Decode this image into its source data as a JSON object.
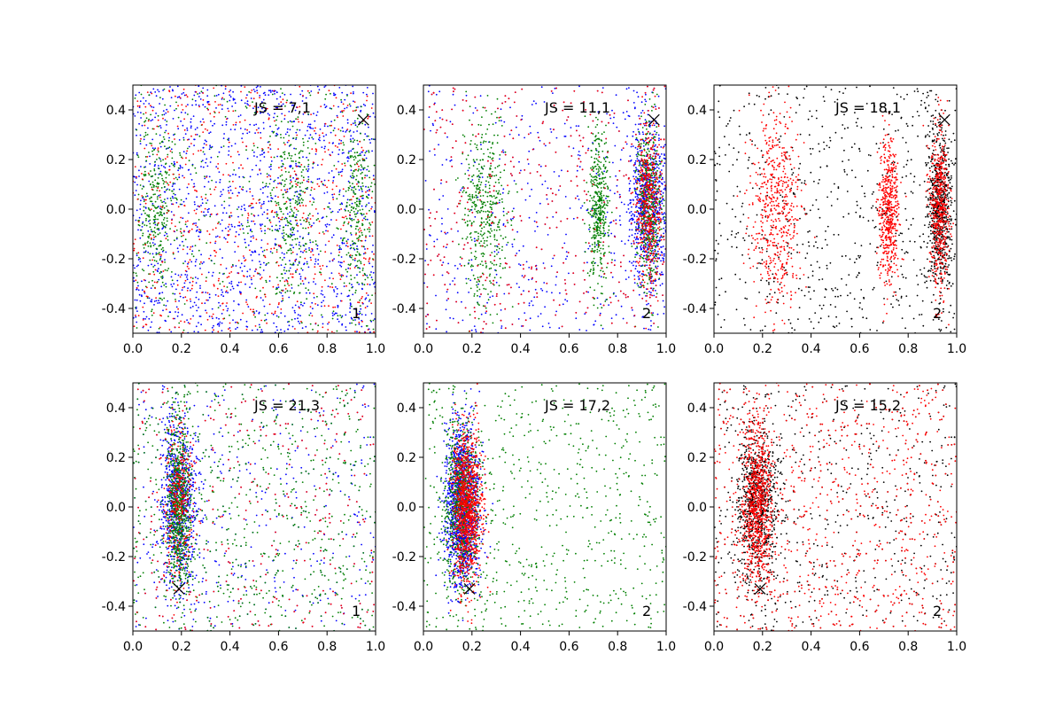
{
  "colors": {
    "blue": "#0000ff",
    "green": "#007f00",
    "red": "#ff0000",
    "black": "#000000"
  },
  "chart_data": [
    {
      "type": "scatter",
      "annotation": "JS = 7,1",
      "corner_label": "1",
      "xlim": [
        0.0,
        1.0
      ],
      "ylim": [
        -0.5,
        0.5
      ],
      "xticks": [
        "0.0",
        "0.2",
        "0.4",
        "0.6",
        "0.8",
        "1.0"
      ],
      "yticks": [
        "-0.4",
        "-0.2",
        "0.0",
        "0.2",
        "0.4"
      ],
      "marker": {
        "x": 0.95,
        "y": 0.36
      },
      "series": [
        {
          "color": "#0000ff",
          "count": 1400,
          "clusters": [
            {
              "x": 0.5,
              "y": 0.0,
              "sx": 0.3,
              "sy": 0.26,
              "uniform": true
            }
          ]
        },
        {
          "color": "#007f00",
          "count": 1100,
          "clusters": [
            {
              "x": 0.1,
              "y": 0.0,
              "sx": 0.04,
              "sy": 0.18
            },
            {
              "x": 0.65,
              "y": 0.0,
              "sx": 0.05,
              "sy": 0.2
            },
            {
              "x": 0.92,
              "y": 0.0,
              "sx": 0.03,
              "sy": 0.2
            },
            {
              "x": 0.4,
              "y": 0.0,
              "sx": 0.3,
              "sy": 0.25,
              "uniform": true
            }
          ]
        },
        {
          "color": "#ff0000",
          "count": 700,
          "clusters": [
            {
              "x": 0.5,
              "y": 0.0,
              "sx": 0.3,
              "sy": 0.26,
              "uniform": true
            }
          ]
        }
      ]
    },
    {
      "type": "scatter",
      "annotation": "JS = 11,1",
      "corner_label": "2",
      "xlim": [
        0.0,
        1.0
      ],
      "ylim": [
        -0.5,
        0.5
      ],
      "xticks": [
        "0.0",
        "0.2",
        "0.4",
        "0.6",
        "0.8",
        "1.0"
      ],
      "yticks": [
        "-0.4",
        "-0.2",
        "0.0",
        "0.2",
        "0.4"
      ],
      "marker": {
        "x": 0.95,
        "y": 0.36
      },
      "series": [
        {
          "color": "#0000ff",
          "count": 1700,
          "clusters": [
            {
              "x": 0.93,
              "y": 0.0,
              "sx": 0.04,
              "sy": 0.16
            },
            {
              "x": 0.5,
              "y": 0.0,
              "sx": 0.3,
              "sy": 0.26,
              "uniform": true
            }
          ]
        },
        {
          "color": "#007f00",
          "count": 1300,
          "clusters": [
            {
              "x": 0.93,
              "y": 0.0,
              "sx": 0.025,
              "sy": 0.17
            },
            {
              "x": 0.72,
              "y": 0.0,
              "sx": 0.02,
              "sy": 0.15
            },
            {
              "x": 0.25,
              "y": 0.0,
              "sx": 0.05,
              "sy": 0.2
            }
          ]
        },
        {
          "color": "#ff0000",
          "count": 900,
          "clusters": [
            {
              "x": 0.93,
              "y": 0.0,
              "sx": 0.025,
              "sy": 0.16
            },
            {
              "x": 0.45,
              "y": 0.0,
              "sx": 0.3,
              "sy": 0.26,
              "uniform": true
            }
          ]
        }
      ]
    },
    {
      "type": "scatter",
      "annotation": "JS = 18,1",
      "corner_label": "2",
      "xlim": [
        0.0,
        1.0
      ],
      "ylim": [
        -0.5,
        0.5
      ],
      "xticks": [
        "0.0",
        "0.2",
        "0.4",
        "0.6",
        "0.8",
        "1.0"
      ],
      "yticks": [
        "-0.4",
        "-0.2",
        "0.0",
        "0.2",
        "0.4"
      ],
      "marker": {
        "x": 0.95,
        "y": 0.36
      },
      "series": [
        {
          "color": "#000000",
          "count": 1300,
          "clusters": [
            {
              "x": 0.93,
              "y": 0.0,
              "sx": 0.025,
              "sy": 0.16
            },
            {
              "x": 0.4,
              "y": 0.0,
              "sx": 0.3,
              "sy": 0.25,
              "uniform": true
            }
          ]
        },
        {
          "color": "#ff0000",
          "count": 1600,
          "clusters": [
            {
              "x": 0.93,
              "y": 0.0,
              "sx": 0.02,
              "sy": 0.16
            },
            {
              "x": 0.72,
              "y": 0.0,
              "sx": 0.02,
              "sy": 0.15
            },
            {
              "x": 0.25,
              "y": 0.0,
              "sx": 0.05,
              "sy": 0.2
            }
          ]
        }
      ]
    },
    {
      "type": "scatter",
      "annotation": "JS = 21,3",
      "corner_label": "1",
      "xlim": [
        0.0,
        1.0
      ],
      "ylim": [
        -0.5,
        0.5
      ],
      "xticks": [
        "0.0",
        "0.2",
        "0.4",
        "0.6",
        "0.8",
        "1.0"
      ],
      "yticks": [
        "-0.4",
        "-0.2",
        "0.0",
        "0.2",
        "0.4"
      ],
      "marker": {
        "x": 0.19,
        "y": -0.33
      },
      "series": [
        {
          "color": "#0000ff",
          "count": 1700,
          "clusters": [
            {
              "x": 0.19,
              "y": 0.0,
              "sx": 0.035,
              "sy": 0.17
            },
            {
              "x": 0.6,
              "y": 0.0,
              "sx": 0.2,
              "sy": 0.22,
              "uniform": true
            }
          ]
        },
        {
          "color": "#007f00",
          "count": 1400,
          "clusters": [
            {
              "x": 0.19,
              "y": 0.0,
              "sx": 0.025,
              "sy": 0.17
            },
            {
              "x": 0.5,
              "y": 0.0,
              "sx": 0.2,
              "sy": 0.2,
              "uniform": true
            }
          ]
        },
        {
          "color": "#ff0000",
          "count": 600,
          "clusters": [
            {
              "x": 0.19,
              "y": 0.0,
              "sx": 0.03,
              "sy": 0.16
            },
            {
              "x": 0.6,
              "y": 0.0,
              "sx": 0.3,
              "sy": 0.25,
              "uniform": true
            }
          ]
        }
      ]
    },
    {
      "type": "scatter",
      "annotation": "JS = 17,2",
      "corner_label": "2",
      "xlim": [
        0.0,
        1.0
      ],
      "ylim": [
        -0.5,
        0.5
      ],
      "xticks": [
        "0.0",
        "0.2",
        "0.4",
        "0.6",
        "0.8",
        "1.0"
      ],
      "yticks": [
        "-0.4",
        "-0.2",
        "0.0",
        "0.2",
        "0.4"
      ],
      "marker": {
        "x": 0.19,
        "y": -0.33
      },
      "series": [
        {
          "color": "#0000ff",
          "count": 1500,
          "clusters": [
            {
              "x": 0.16,
              "y": 0.0,
              "sx": 0.035,
              "sy": 0.16
            }
          ]
        },
        {
          "color": "#007f00",
          "count": 1400,
          "clusters": [
            {
              "x": 0.16,
              "y": 0.0,
              "sx": 0.035,
              "sy": 0.16
            },
            {
              "x": 0.55,
              "y": 0.0,
              "sx": 0.25,
              "sy": 0.22,
              "uniform": true
            }
          ]
        },
        {
          "color": "#ff0000",
          "count": 1100,
          "clusters": [
            {
              "x": 0.18,
              "y": 0.0,
              "sx": 0.03,
              "sy": 0.15
            }
          ]
        }
      ]
    },
    {
      "type": "scatter",
      "annotation": "JS = 15,2",
      "corner_label": "2",
      "xlim": [
        0.0,
        1.0
      ],
      "ylim": [
        -0.5,
        0.5
      ],
      "xticks": [
        "0.0",
        "0.2",
        "0.4",
        "0.6",
        "0.8",
        "1.0"
      ],
      "yticks": [
        "-0.4",
        "-0.2",
        "0.0",
        "0.2",
        "0.4"
      ],
      "marker": {
        "x": 0.19,
        "y": -0.33
      },
      "series": [
        {
          "color": "#000000",
          "count": 1600,
          "clusters": [
            {
              "x": 0.18,
              "y": 0.0,
              "sx": 0.04,
              "sy": 0.16
            },
            {
              "x": 0.6,
              "y": 0.0,
              "sx": 0.2,
              "sy": 0.22,
              "uniform": true
            }
          ]
        },
        {
          "color": "#ff0000",
          "count": 1700,
          "clusters": [
            {
              "x": 0.18,
              "y": 0.0,
              "sx": 0.03,
              "sy": 0.16
            },
            {
              "x": 0.55,
              "y": 0.0,
              "sx": 0.2,
              "sy": 0.2,
              "uniform": true
            }
          ]
        }
      ]
    }
  ]
}
